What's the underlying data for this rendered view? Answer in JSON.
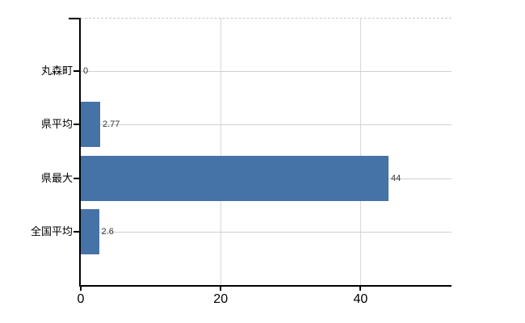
{
  "chart_data": {
    "type": "bar",
    "orientation": "horizontal",
    "title": "",
    "xlabel": "",
    "ylabel": "",
    "categories": [
      "丸森町",
      "県平均",
      "県最大",
      "全国平均"
    ],
    "values": [
      0,
      2.77,
      44,
      2.6
    ],
    "value_labels": [
      "0",
      "2.77",
      "44",
      "2.6"
    ],
    "x_ticks": [
      0,
      20,
      40
    ],
    "x_tick_labels": [
      "0",
      "20",
      "40"
    ],
    "xlim": [
      0,
      53
    ],
    "grid": true,
    "legend": false,
    "colors": {
      "bar": "#4572a7",
      "axis": "#000000",
      "h_gridline": "#ccd2ca",
      "v_gridline": "#d6d9d3",
      "plot_border_dashed": "#c8c8c8",
      "value_label": "#333333",
      "tick_label": "#000000",
      "background": "#ffffff"
    }
  }
}
